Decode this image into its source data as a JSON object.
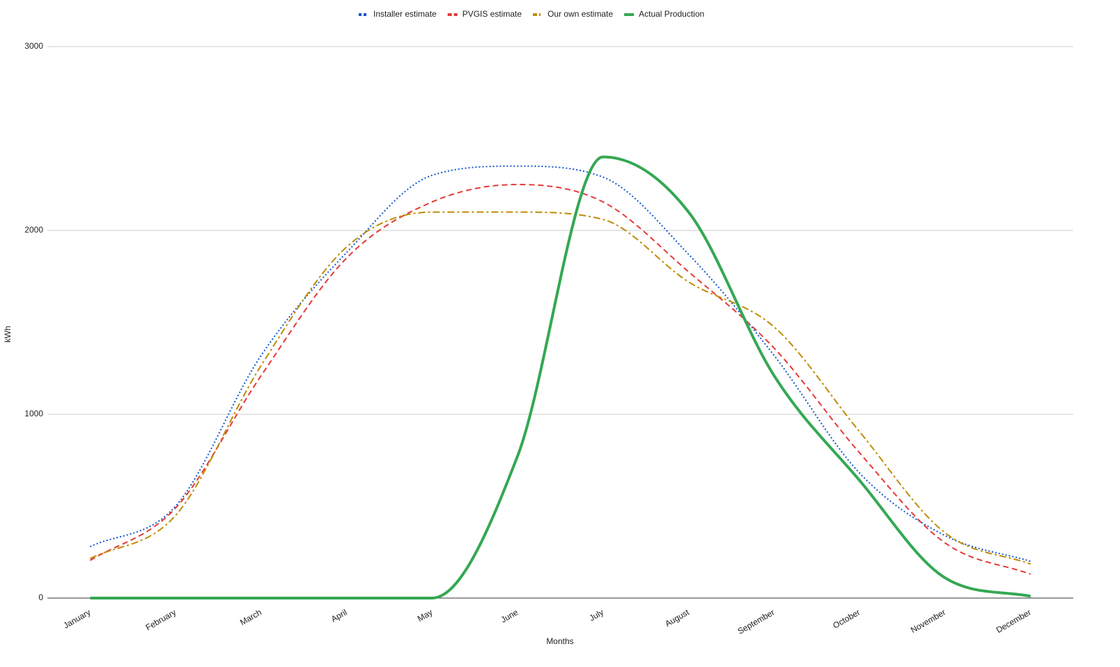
{
  "chart_data": {
    "type": "line",
    "x_label": "Months",
    "y_label": "kWh",
    "categories": [
      "January",
      "February",
      "March",
      "April",
      "May",
      "June",
      "July",
      "August",
      "September",
      "October",
      "November",
      "December"
    ],
    "series": [
      {
        "name": "Installer estimate",
        "color": "#1155cc",
        "line_style": "dotted",
        "values": [
          280,
          500,
          1320,
          1880,
          2300,
          2350,
          2290,
          1870,
          1320,
          680,
          340,
          200
        ]
      },
      {
        "name": "PVGIS estimate",
        "color": "#e53935",
        "line_style": "dashed",
        "values": [
          205,
          490,
          1210,
          1850,
          2155,
          2250,
          2155,
          1775,
          1360,
          790,
          300,
          130
        ]
      },
      {
        "name": "Our own estimate",
        "color": "#bf8b00",
        "line_style": "dashdot",
        "values": [
          215,
          450,
          1265,
          1910,
          2100,
          2100,
          2060,
          1720,
          1475,
          905,
          355,
          185
        ]
      },
      {
        "name": "Actual Production",
        "color": "#34a853",
        "line_style": "solid",
        "values": [
          0,
          0,
          0,
          0,
          0,
          773,
          2400,
          2100,
          1210,
          640,
          110,
          10
        ]
      }
    ],
    "ylim": [
      0,
      3000
    ],
    "yticks": [
      0,
      1000,
      2000,
      3000
    ],
    "grid": true,
    "legend": "top"
  }
}
